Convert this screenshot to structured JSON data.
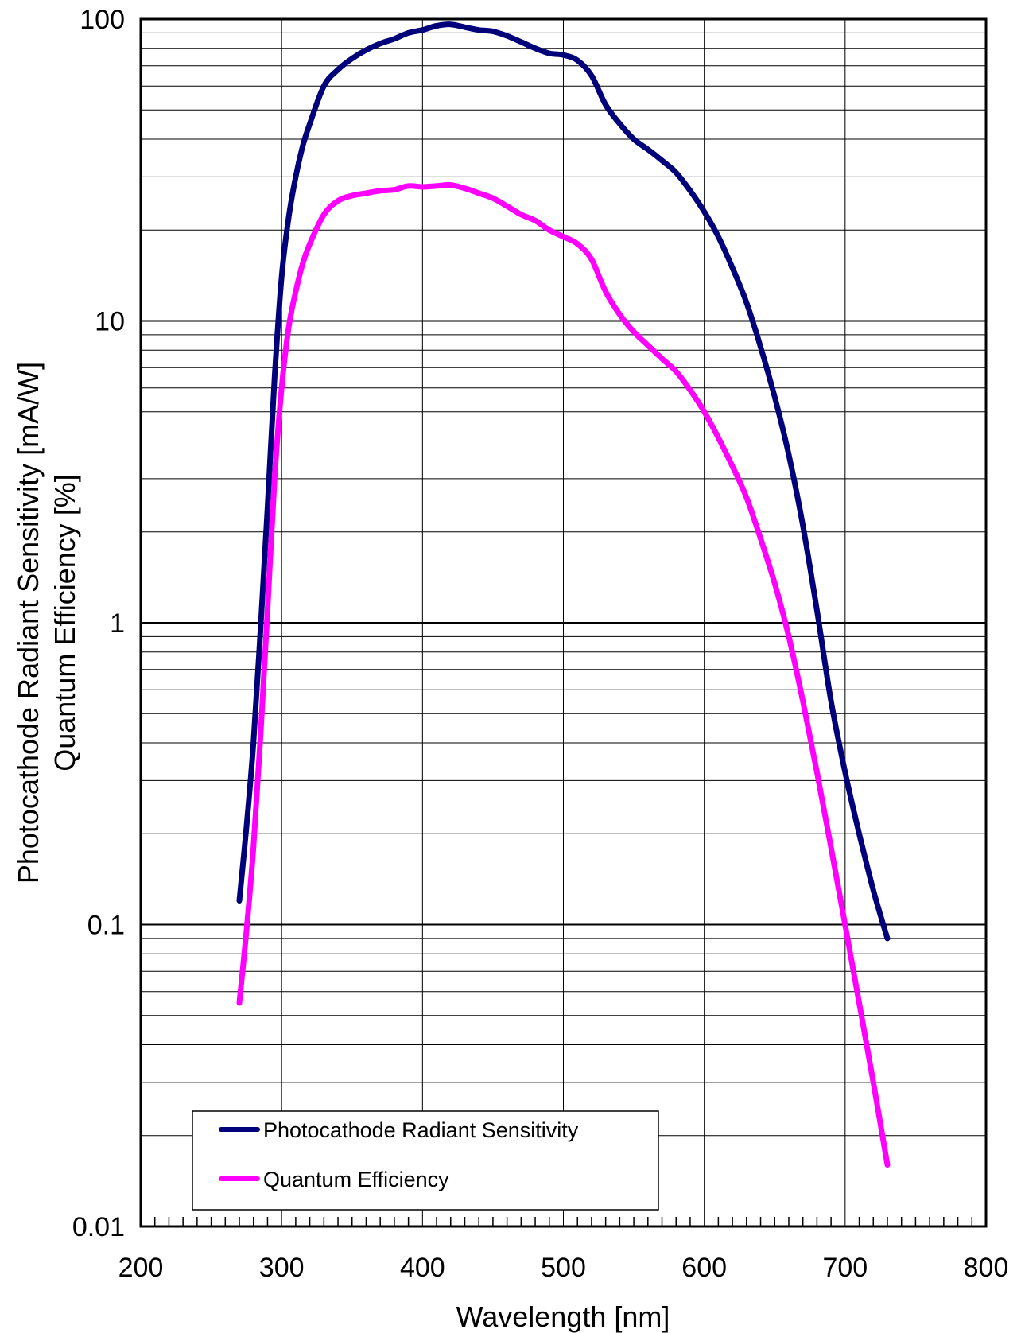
{
  "chart_data": {
    "type": "line",
    "xlabel": "Wavelength [nm]",
    "ylabel": [
      "Photocathode Radiant Sensitivity [mA/W]",
      "Quantum Efficiency [%]"
    ],
    "xlim": [
      200,
      800
    ],
    "ylim": [
      0.01,
      100
    ],
    "yscale": "log",
    "grid": true,
    "legend_position": "bottom-left",
    "x_ticks": [
      "200",
      "300",
      "400",
      "500",
      "600",
      "700",
      "800"
    ],
    "y_ticks": [
      "0.01",
      "0.1",
      "1",
      "10",
      "100"
    ],
    "series": [
      {
        "name": "Photocathode Radiant Sensitivity",
        "color": "#00007a",
        "x": [
          270,
          275,
          280,
          285,
          290,
          295,
          300,
          305,
          310,
          315,
          320,
          330,
          340,
          350,
          360,
          370,
          380,
          390,
          400,
          410,
          420,
          430,
          440,
          450,
          460,
          470,
          480,
          490,
          500,
          510,
          520,
          530,
          540,
          550,
          560,
          570,
          580,
          590,
          600,
          610,
          620,
          630,
          640,
          650,
          660,
          670,
          680,
          690,
          700,
          710,
          720,
          730
        ],
        "values": [
          0.12,
          0.21,
          0.4,
          0.95,
          2.4,
          6.5,
          14,
          22,
          30,
          38,
          45,
          60,
          68,
          74,
          79,
          83,
          86,
          90,
          92,
          95,
          96,
          94,
          92,
          91,
          88,
          84,
          80,
          77,
          76,
          73,
          65,
          52,
          45,
          40,
          37,
          34,
          31,
          27,
          23,
          19,
          15,
          11.5,
          8.2,
          5.6,
          3.6,
          2.1,
          1.1,
          0.55,
          0.32,
          0.2,
          0.13,
          0.09
        ]
      },
      {
        "name": "Quantum Efficiency",
        "color": "#ff00ff",
        "x": [
          270,
          275,
          280,
          285,
          290,
          295,
          300,
          305,
          310,
          315,
          320,
          330,
          340,
          350,
          360,
          370,
          380,
          390,
          400,
          410,
          420,
          430,
          440,
          450,
          460,
          470,
          480,
          490,
          500,
          510,
          520,
          530,
          540,
          550,
          560,
          570,
          580,
          590,
          600,
          610,
          620,
          630,
          640,
          650,
          660,
          670,
          680,
          690,
          700,
          710,
          720,
          730
        ],
        "values": [
          0.055,
          0.095,
          0.18,
          0.42,
          1.1,
          3.0,
          6.0,
          9.5,
          12.5,
          15.5,
          18,
          22.5,
          25,
          26,
          26.5,
          27,
          27.2,
          28,
          27.8,
          28,
          28.2,
          27.5,
          26.5,
          25.5,
          24,
          22.5,
          21.5,
          20,
          19,
          18,
          16,
          12.5,
          10.5,
          9.2,
          8.3,
          7.5,
          6.8,
          5.9,
          5.0,
          4.1,
          3.3,
          2.6,
          1.9,
          1.35,
          0.9,
          0.55,
          0.32,
          0.18,
          0.1,
          0.055,
          0.03,
          0.016
        ]
      }
    ]
  }
}
